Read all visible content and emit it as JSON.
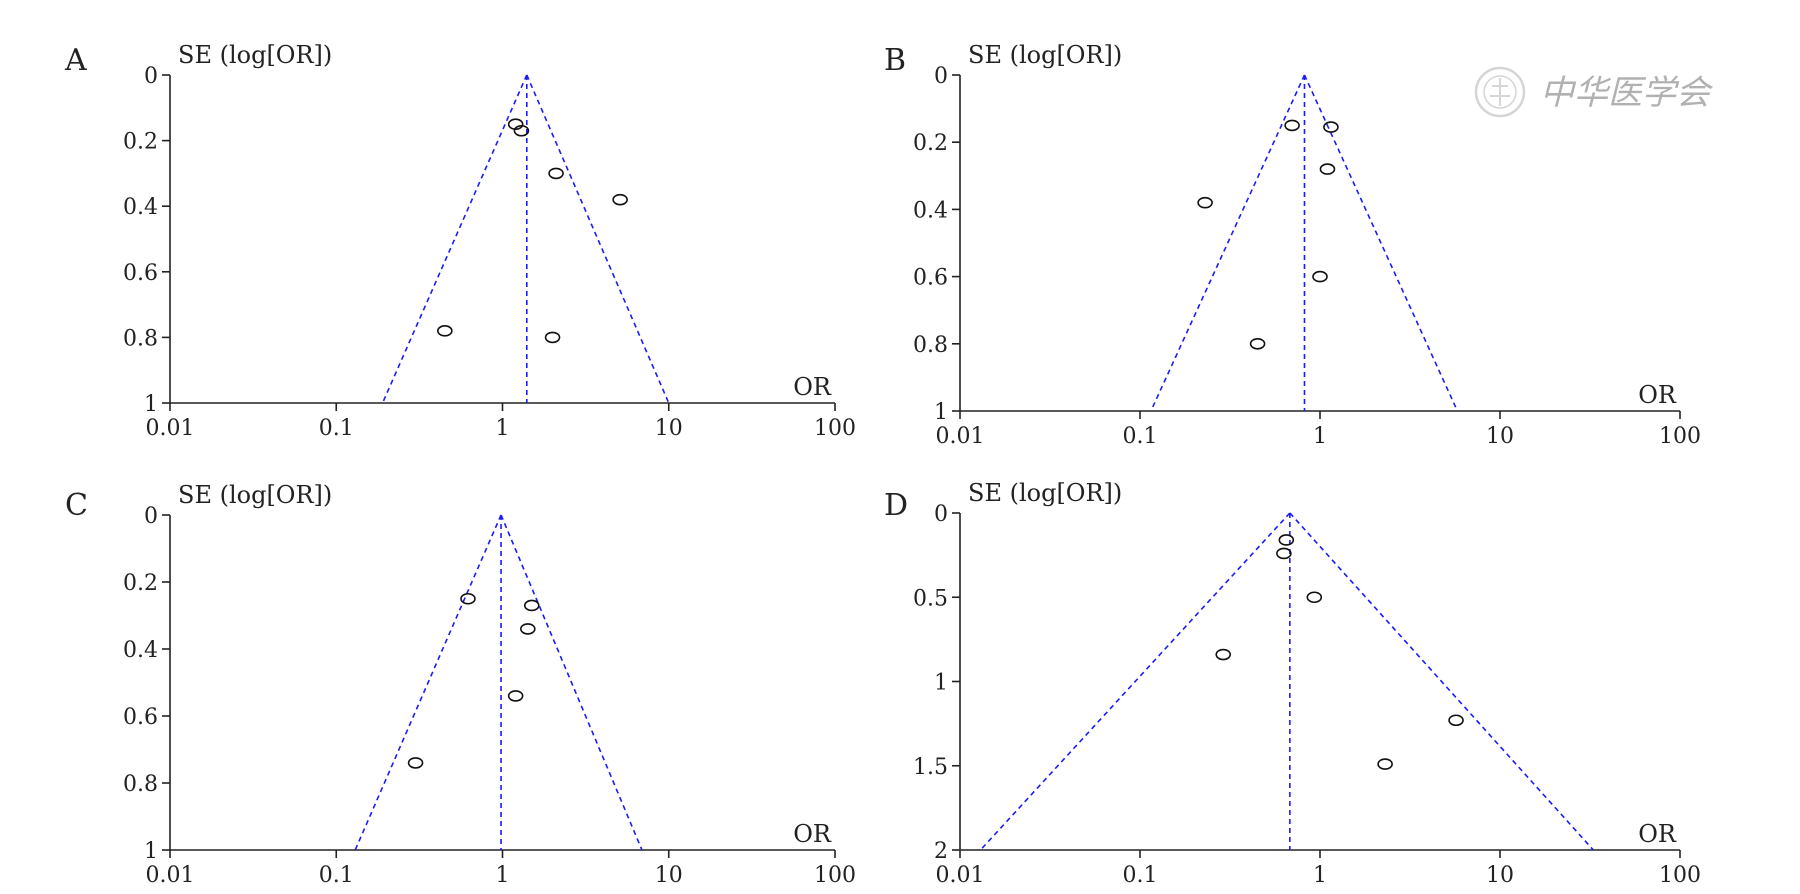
{
  "watermark": {
    "text": "中华医学会",
    "seal_icon": "society-seal-icon"
  },
  "colors": {
    "funnel": "#1a1aff",
    "points": "#111111",
    "axes": "#222222"
  },
  "chart_data": [
    {
      "panel": "A",
      "type": "scatter",
      "ylabel": "SE (log[OR])",
      "xlabel": "OR",
      "x_scale": "log",
      "x_ticks": [
        "0.01",
        "0.1",
        "1",
        "10",
        "100"
      ],
      "x_tick_values": [
        0.01,
        0.1,
        1,
        10,
        100
      ],
      "y_ticks": [
        "0",
        "0.2",
        "0.4",
        "0.6",
        "0.8",
        "1"
      ],
      "y_tick_values": [
        0,
        0.2,
        0.4,
        0.6,
        0.8,
        1
      ],
      "ylim": [
        0,
        1
      ],
      "xlim": [
        0.01,
        100
      ],
      "pooled_or": 1.4,
      "funnel_base_or": [
        0.19,
        10
      ],
      "points": [
        {
          "or": 1.2,
          "se": 0.15
        },
        {
          "or": 1.3,
          "se": 0.17
        },
        {
          "or": 2.1,
          "se": 0.3
        },
        {
          "or": 5.1,
          "se": 0.38
        },
        {
          "or": 0.45,
          "se": 0.78
        },
        {
          "or": 2.0,
          "se": 0.8
        }
      ]
    },
    {
      "panel": "B",
      "type": "scatter",
      "ylabel": "SE (log[OR])",
      "xlabel": "OR",
      "x_scale": "log",
      "x_ticks": [
        "0.01",
        "0.1",
        "1",
        "10",
        "100"
      ],
      "x_tick_values": [
        0.01,
        0.1,
        1,
        10,
        100
      ],
      "y_ticks": [
        "0",
        "0.2",
        "0.4",
        "0.6",
        "0.8",
        "1"
      ],
      "y_tick_values": [
        0,
        0.2,
        0.4,
        0.6,
        0.8,
        1
      ],
      "ylim": [
        0,
        1
      ],
      "xlim": [
        0.01,
        100
      ],
      "pooled_or": 0.82,
      "funnel_base_or": [
        0.115,
        5.8
      ],
      "points": [
        {
          "or": 0.7,
          "se": 0.15
        },
        {
          "or": 1.15,
          "se": 0.155
        },
        {
          "or": 1.1,
          "se": 0.28
        },
        {
          "or": 0.23,
          "se": 0.38
        },
        {
          "or": 1.0,
          "se": 0.6
        },
        {
          "or": 0.45,
          "se": 0.8
        }
      ]
    },
    {
      "panel": "C",
      "type": "scatter",
      "ylabel": "SE (log[OR])",
      "xlabel": "OR",
      "x_scale": "log",
      "x_ticks": [
        "0.01",
        "0.1",
        "1",
        "10",
        "100"
      ],
      "x_tick_values": [
        0.01,
        0.1,
        1,
        10,
        100
      ],
      "y_ticks": [
        "0",
        "0.2",
        "0.4",
        "0.6",
        "0.8",
        "1"
      ],
      "y_tick_values": [
        0,
        0.2,
        0.4,
        0.6,
        0.8,
        1
      ],
      "ylim": [
        0,
        1
      ],
      "xlim": [
        0.01,
        100
      ],
      "pooled_or": 0.98,
      "funnel_base_or": [
        0.13,
        6.9
      ],
      "points": [
        {
          "or": 0.62,
          "se": 0.25
        },
        {
          "or": 1.5,
          "se": 0.27
        },
        {
          "or": 1.42,
          "se": 0.34
        },
        {
          "or": 1.2,
          "se": 0.54
        },
        {
          "or": 0.3,
          "se": 0.74
        }
      ]
    },
    {
      "panel": "D",
      "type": "scatter",
      "ylabel": "SE (log[OR])",
      "xlabel": "OR",
      "x_scale": "log",
      "x_ticks": [
        "0.01",
        "0.1",
        "1",
        "10",
        "100"
      ],
      "x_tick_values": [
        0.01,
        0.1,
        1,
        10,
        100
      ],
      "y_ticks": [
        "0",
        "0.5",
        "1",
        "1.5",
        "2"
      ],
      "y_tick_values": [
        0,
        0.5,
        1,
        1.5,
        2
      ],
      "ylim": [
        0,
        2
      ],
      "xlim": [
        0.01,
        100
      ],
      "pooled_or": 0.68,
      "funnel_base_or": [
        0.013,
        33
      ],
      "points": [
        {
          "or": 0.65,
          "se": 0.16
        },
        {
          "or": 0.63,
          "se": 0.24
        },
        {
          "or": 0.93,
          "se": 0.5
        },
        {
          "or": 0.29,
          "se": 0.84
        },
        {
          "or": 5.7,
          "se": 1.23
        },
        {
          "or": 2.3,
          "se": 1.49
        }
      ]
    }
  ]
}
